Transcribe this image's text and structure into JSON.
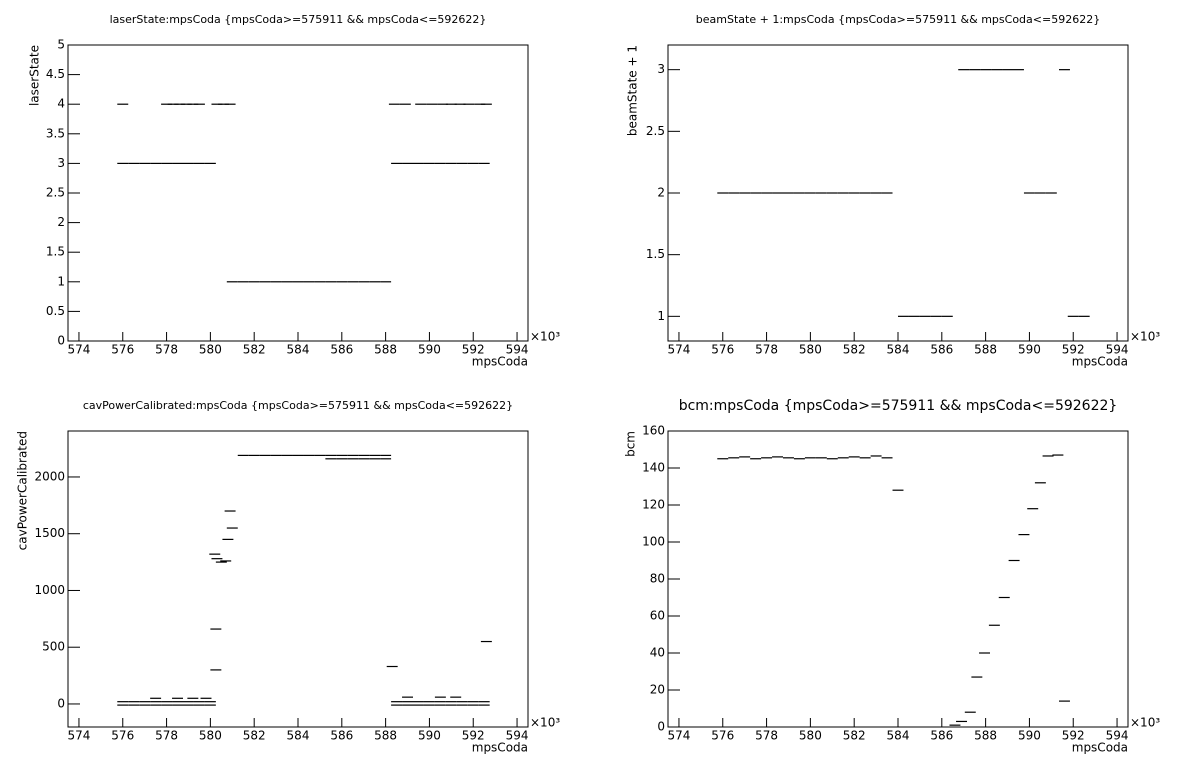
{
  "chart_data": [
    {
      "type": "scatter",
      "title": "laserState:mpsCoda {mpsCoda>=575911 && mpsCoda<=592622}",
      "xlabel": "mpsCoda",
      "ylabel": "laserState",
      "x_multiplier": "×10³",
      "color": "#000000",
      "xlim": [
        573.5,
        594.5
      ],
      "xticks": [
        574,
        576,
        578,
        580,
        582,
        584,
        586,
        588,
        590,
        592,
        594
      ],
      "ylim": [
        0,
        5
      ],
      "yticks": [
        0,
        0.5,
        1,
        1.5,
        2,
        2.5,
        3,
        3.5,
        4,
        4.5,
        5
      ],
      "x": [
        576,
        576.5,
        577,
        577.5,
        578,
        578.5,
        579,
        579.5,
        580,
        576,
        578,
        578.3,
        578.6,
        578.9,
        579.2,
        579.5,
        580.3,
        580.6,
        580.9,
        581,
        581.5,
        582,
        582.5,
        583,
        583.5,
        584,
        584.5,
        585,
        585.5,
        586,
        586.5,
        587,
        587.5,
        588,
        588.5,
        589,
        589.5,
        590,
        590.5,
        591,
        591.5,
        592,
        592.5,
        588.4,
        588.9,
        589.6,
        590.1,
        590.6,
        591,
        591.4,
        591.8,
        592.3,
        592.6
      ],
      "y": [
        3,
        3,
        3,
        3,
        3,
        3,
        3,
        3,
        3,
        4,
        4,
        4,
        4,
        4,
        4,
        4,
        4,
        4,
        4,
        1,
        1,
        1,
        1,
        1,
        1,
        1,
        1,
        1,
        1,
        1,
        1,
        1,
        1,
        1,
        3,
        3,
        3,
        3,
        3,
        3,
        3,
        3,
        3,
        4,
        4,
        4,
        4,
        4,
        4,
        4,
        4,
        4,
        4
      ]
    },
    {
      "type": "scatter",
      "title": "beamState + 1:mpsCoda {mpsCoda>=575911 && mpsCoda<=592622}",
      "xlabel": "mpsCoda",
      "ylabel": "beamState + 1",
      "x_multiplier": "×10³",
      "color": "#000000",
      "xlim": [
        573.5,
        594.5
      ],
      "xticks": [
        574,
        576,
        578,
        580,
        582,
        584,
        586,
        588,
        590,
        592,
        594
      ],
      "ylim": [
        0.8,
        3.2
      ],
      "yticks": [
        1,
        1.5,
        2,
        2.5,
        3
      ],
      "x": [
        576,
        576.5,
        577,
        577.5,
        578,
        578.5,
        579,
        579.5,
        580,
        580.5,
        581,
        581.5,
        582,
        582.5,
        583,
        583.5,
        584.25,
        584.75,
        585.25,
        585.75,
        586.25,
        587,
        587.5,
        588,
        588.5,
        589,
        589.5,
        590,
        590.5,
        591,
        591.6,
        592,
        592.5
      ],
      "y": [
        2,
        2,
        2,
        2,
        2,
        2,
        2,
        2,
        2,
        2,
        2,
        2,
        2,
        2,
        2,
        2,
        1,
        1,
        1,
        1,
        1,
        3,
        3,
        3,
        3,
        3,
        3,
        2,
        2,
        2,
        3,
        1,
        1
      ]
    },
    {
      "type": "scatter",
      "title": "cavPowerCalibrated:mpsCoda {mpsCoda>=575911 && mpsCoda<=592622}",
      "xlabel": "mpsCoda",
      "ylabel": "cavPowerCalibrated",
      "x_multiplier": "×10³",
      "color": "#000000",
      "xlim": [
        573.5,
        594.5
      ],
      "xticks": [
        574,
        576,
        578,
        580,
        582,
        584,
        586,
        588,
        590,
        592,
        594
      ],
      "ylim": [
        -203,
        2405
      ],
      "yticks": [
        0,
        500,
        1000,
        1500,
        2000
      ],
      "x": [
        576,
        576.5,
        577,
        577.5,
        578,
        578.5,
        579,
        579.5,
        580,
        576,
        576.5,
        577,
        577.5,
        578,
        578.5,
        579,
        579.5,
        580,
        577.5,
        578.5,
        579.2,
        579.8,
        580.2,
        580.3,
        580.5,
        580.7,
        580.8,
        580.9,
        581,
        580.25,
        580.25,
        581.5,
        582,
        582.5,
        583,
        583.5,
        584,
        584.5,
        585,
        585.5,
        586,
        586.5,
        587,
        587.5,
        588,
        585.5,
        586,
        586.5,
        587,
        587.5,
        588,
        588.5,
        589,
        589.5,
        590,
        590.5,
        591,
        591.5,
        592,
        592.5,
        588.5,
        589,
        589.5,
        590,
        590.5,
        591,
        591.5,
        592,
        592.5,
        589,
        590.5,
        591.2,
        588.3,
        592.6
      ],
      "y": [
        20,
        20,
        20,
        20,
        20,
        20,
        20,
        20,
        20,
        -10,
        -10,
        -10,
        -10,
        -10,
        -10,
        -10,
        -10,
        -10,
        50,
        50,
        50,
        50,
        1320,
        1280,
        1250,
        1260,
        1450,
        1700,
        1550,
        300,
        660,
        2190,
        2190,
        2190,
        2190,
        2190,
        2190,
        2190,
        2190,
        2190,
        2190,
        2190,
        2190,
        2190,
        2190,
        2160,
        2160,
        2160,
        2160,
        2160,
        2160,
        20,
        20,
        20,
        20,
        20,
        20,
        20,
        20,
        20,
        -10,
        -10,
        -10,
        -10,
        -10,
        -10,
        -10,
        -10,
        -10,
        60,
        60,
        60,
        330,
        550
      ]
    },
    {
      "type": "scatter",
      "title": "bcm:mpsCoda {mpsCoda>=575911 && mpsCoda<=592622}",
      "xlabel": "mpsCoda",
      "ylabel": "bcm",
      "x_multiplier": "×10³",
      "color": "#000000",
      "xlim": [
        573.5,
        594.5
      ],
      "xticks": [
        574,
        576,
        578,
        580,
        582,
        584,
        586,
        588,
        590,
        592,
        594
      ],
      "ylim": [
        0,
        160
      ],
      "yticks": [
        0,
        20,
        40,
        60,
        80,
        100,
        120,
        140,
        160
      ],
      "x": [
        576,
        576.5,
        577,
        577.5,
        578,
        578.5,
        579,
        579.5,
        580,
        580.5,
        581,
        581.5,
        582,
        582.5,
        583,
        583.5,
        584,
        586.6,
        586.9,
        587.3,
        587.6,
        587.95,
        588.4,
        588.85,
        589.3,
        589.75,
        590.15,
        590.5,
        590.85,
        591.3,
        591.6
      ],
      "y": [
        145,
        145.5,
        146,
        145,
        145.5,
        146,
        145.5,
        145,
        145.5,
        145.5,
        145,
        145.5,
        146,
        145.5,
        146.5,
        145.5,
        128,
        1,
        3,
        8,
        27,
        40,
        55,
        70,
        90,
        104,
        118,
        132,
        146.5,
        147,
        14
      ]
    }
  ]
}
